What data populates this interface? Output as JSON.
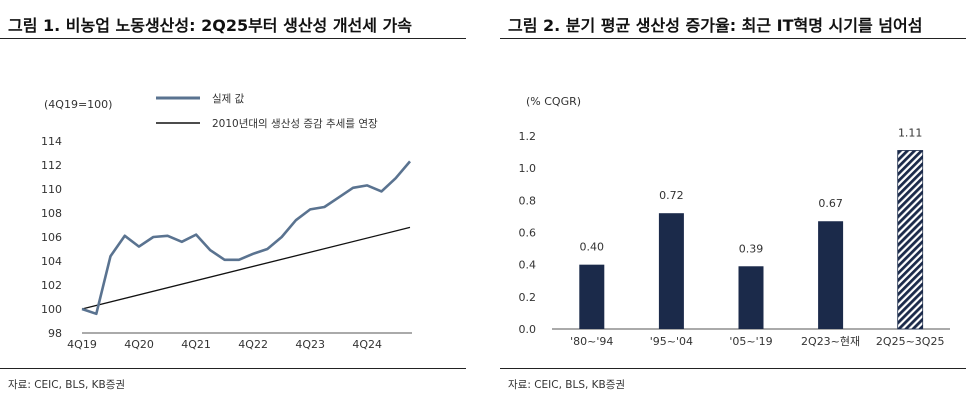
{
  "left": {
    "title": "그림 1. 비농업 노동생산성: 2Q25부터 생산성 개선세 가속",
    "source": "자료: CEIC, BLS, KB증권"
  },
  "right": {
    "title": "그림 2. 분기 평균 생산성 증가율: 최근 IT혁명 시기를 넘어섬",
    "source": "자료: CEIC, BLS, KB증권"
  },
  "chart_data": [
    {
      "type": "line",
      "title": "그림 1. 비농업 노동생산성: 2Q25부터 생산성 개선세 가속",
      "ylabel": "(4Q19=100)",
      "ylim": [
        98,
        114
      ],
      "yticks": [
        98,
        100,
        102,
        104,
        106,
        108,
        110,
        112,
        114
      ],
      "x_tick_labels": [
        "4Q19",
        "4Q20",
        "4Q21",
        "4Q22",
        "4Q23",
        "4Q24"
      ],
      "grid": false,
      "legend": "top-center",
      "series": [
        {
          "name": "실제 값",
          "color": "#5a7390",
          "x": [
            "4Q19",
            "1Q20",
            "2Q20",
            "3Q20",
            "4Q20",
            "1Q21",
            "2Q21",
            "3Q21",
            "4Q21",
            "1Q22",
            "2Q22",
            "3Q22",
            "4Q22",
            "1Q23",
            "2Q23",
            "3Q23",
            "4Q23",
            "1Q24",
            "2Q24",
            "3Q24",
            "4Q24",
            "1Q25",
            "2Q25",
            "3Q25"
          ],
          "values": [
            100.0,
            99.6,
            104.4,
            106.1,
            105.2,
            106.0,
            106.1,
            105.6,
            106.2,
            104.9,
            104.1,
            104.1,
            104.6,
            105.0,
            106.0,
            107.4,
            108.3,
            108.5,
            109.3,
            110.1,
            110.3,
            109.8,
            110.9,
            112.3
          ]
        },
        {
          "name": "2010년대의 생산성 증감 추세를 연장",
          "color": "#111111",
          "x": [
            "4Q19",
            "3Q25"
          ],
          "values": [
            100.0,
            106.8
          ]
        }
      ]
    },
    {
      "type": "bar",
      "title": "그림 2. 분기 평균 생산성 증가율: 최근 IT혁명 시기를 넘어섬",
      "ylabel": "(% CQGR)",
      "ylim": [
        0,
        1.2
      ],
      "yticks": [
        "0.0",
        "0.2",
        "0.4",
        "0.6",
        "0.8",
        "1.0",
        "1.2"
      ],
      "categories": [
        "'80~'94",
        "'95~'04",
        "'05~'19",
        "2Q23~현재",
        "2Q25~3Q25"
      ],
      "values": [
        0.4,
        0.72,
        0.39,
        0.67,
        1.11
      ],
      "value_labels": [
        "0.40",
        "0.72",
        "0.39",
        "0.67",
        "1.11"
      ],
      "bar_color": "#1b2a4a",
      "hatched_last_bar": true,
      "grid": false
    }
  ]
}
